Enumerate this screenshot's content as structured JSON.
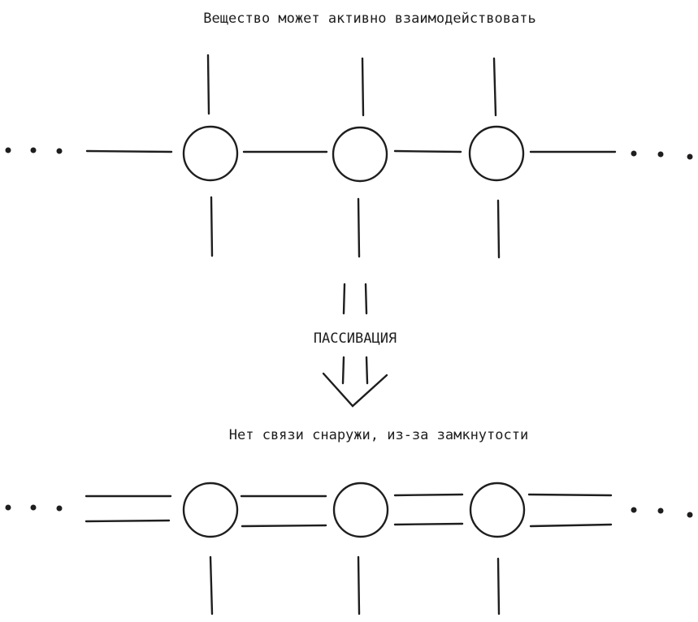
{
  "top_caption": "Вещество может активно взаимодействовать",
  "process_label": "ПАССИВАЦИЯ",
  "bottom_caption": "Нет связи снаружи, из-за замкнутости",
  "colors": {
    "stroke": "#1e1e1e",
    "background": "#ffffff"
  }
}
